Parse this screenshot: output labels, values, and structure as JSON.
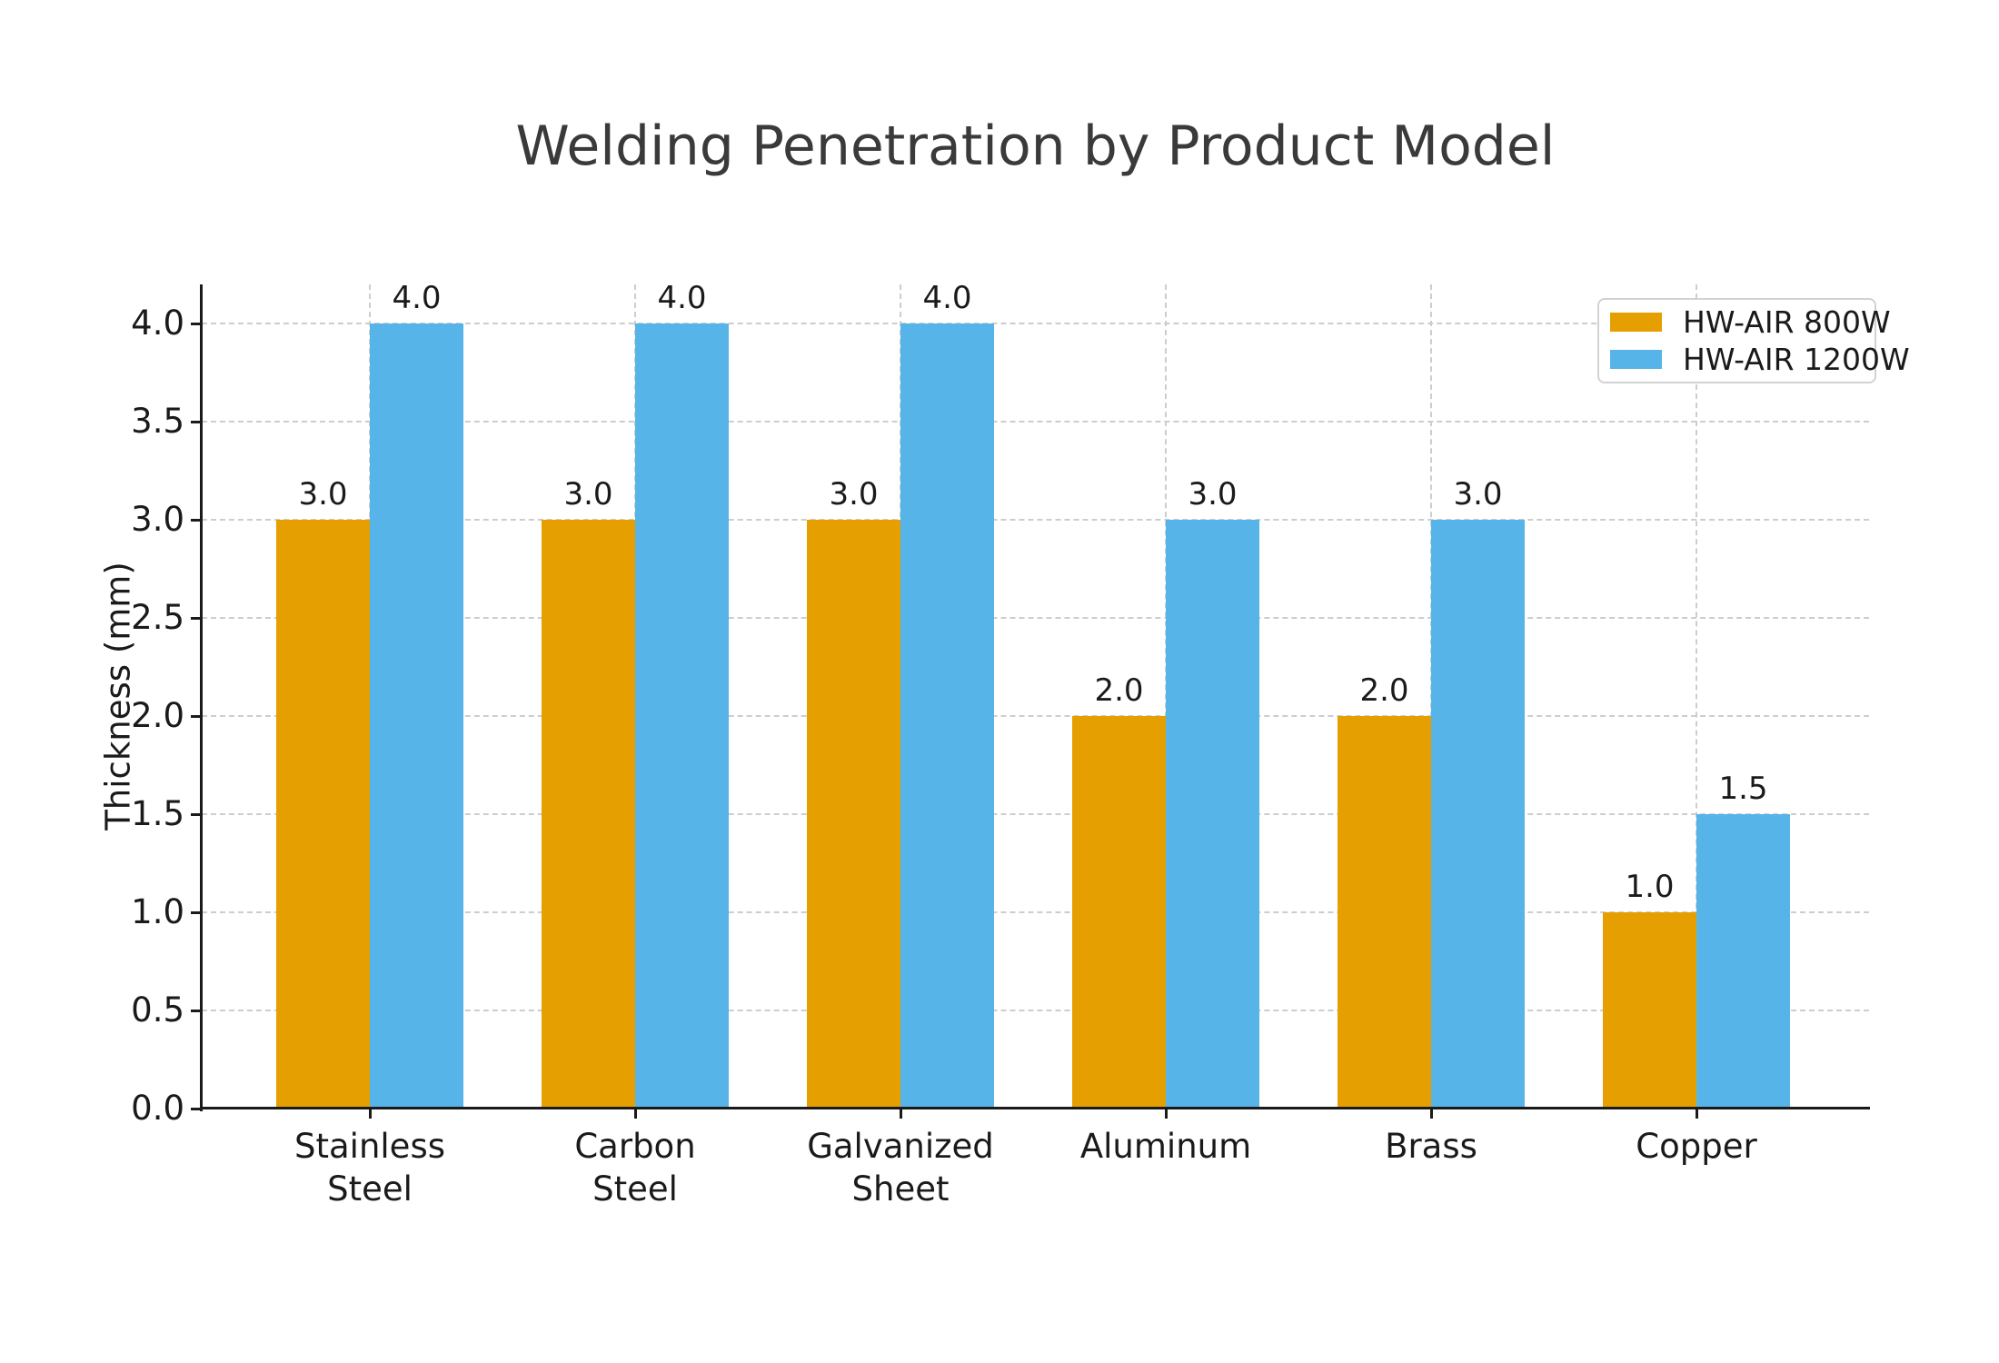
{
  "chart_data": {
    "type": "bar",
    "title": "Welding Penetration by Product Model",
    "ylabel": "Thickness (mm)",
    "xlabel": "",
    "categories": [
      "Stainless\nSteel",
      "Carbon\nSteel",
      "Galvanized\nSheet",
      "Aluminum",
      "Brass",
      "Copper"
    ],
    "series": [
      {
        "name": "HW-AIR 800W",
        "color": "#E69F00",
        "values": [
          3.0,
          3.0,
          3.0,
          2.0,
          2.0,
          1.0
        ],
        "labels": [
          "3.0",
          "3.0",
          "3.0",
          "2.0",
          "2.0",
          "1.0"
        ]
      },
      {
        "name": "HW-AIR 1200W",
        "color": "#56B4E9",
        "values": [
          4.0,
          4.0,
          4.0,
          3.0,
          3.0,
          1.5
        ],
        "labels": [
          "4.0",
          "4.0",
          "4.0",
          "3.0",
          "3.0",
          "1.5"
        ]
      }
    ],
    "yticks": [
      "0.0",
      "0.5",
      "1.0",
      "1.5",
      "2.0",
      "2.5",
      "3.0",
      "3.5",
      "4.0"
    ],
    "ytick_values": [
      0,
      0.5,
      1,
      1.5,
      2,
      2.5,
      3,
      3.5,
      4
    ],
    "ylim": [
      0,
      4.2
    ],
    "grid": true,
    "legend_position": "upper right",
    "colors": {
      "background": "#ffffff",
      "grid": "#cdcdcd",
      "axis": "#1a1a1a",
      "title_text": "#3a3a3a",
      "tick_text": "#1a1a1a"
    }
  }
}
